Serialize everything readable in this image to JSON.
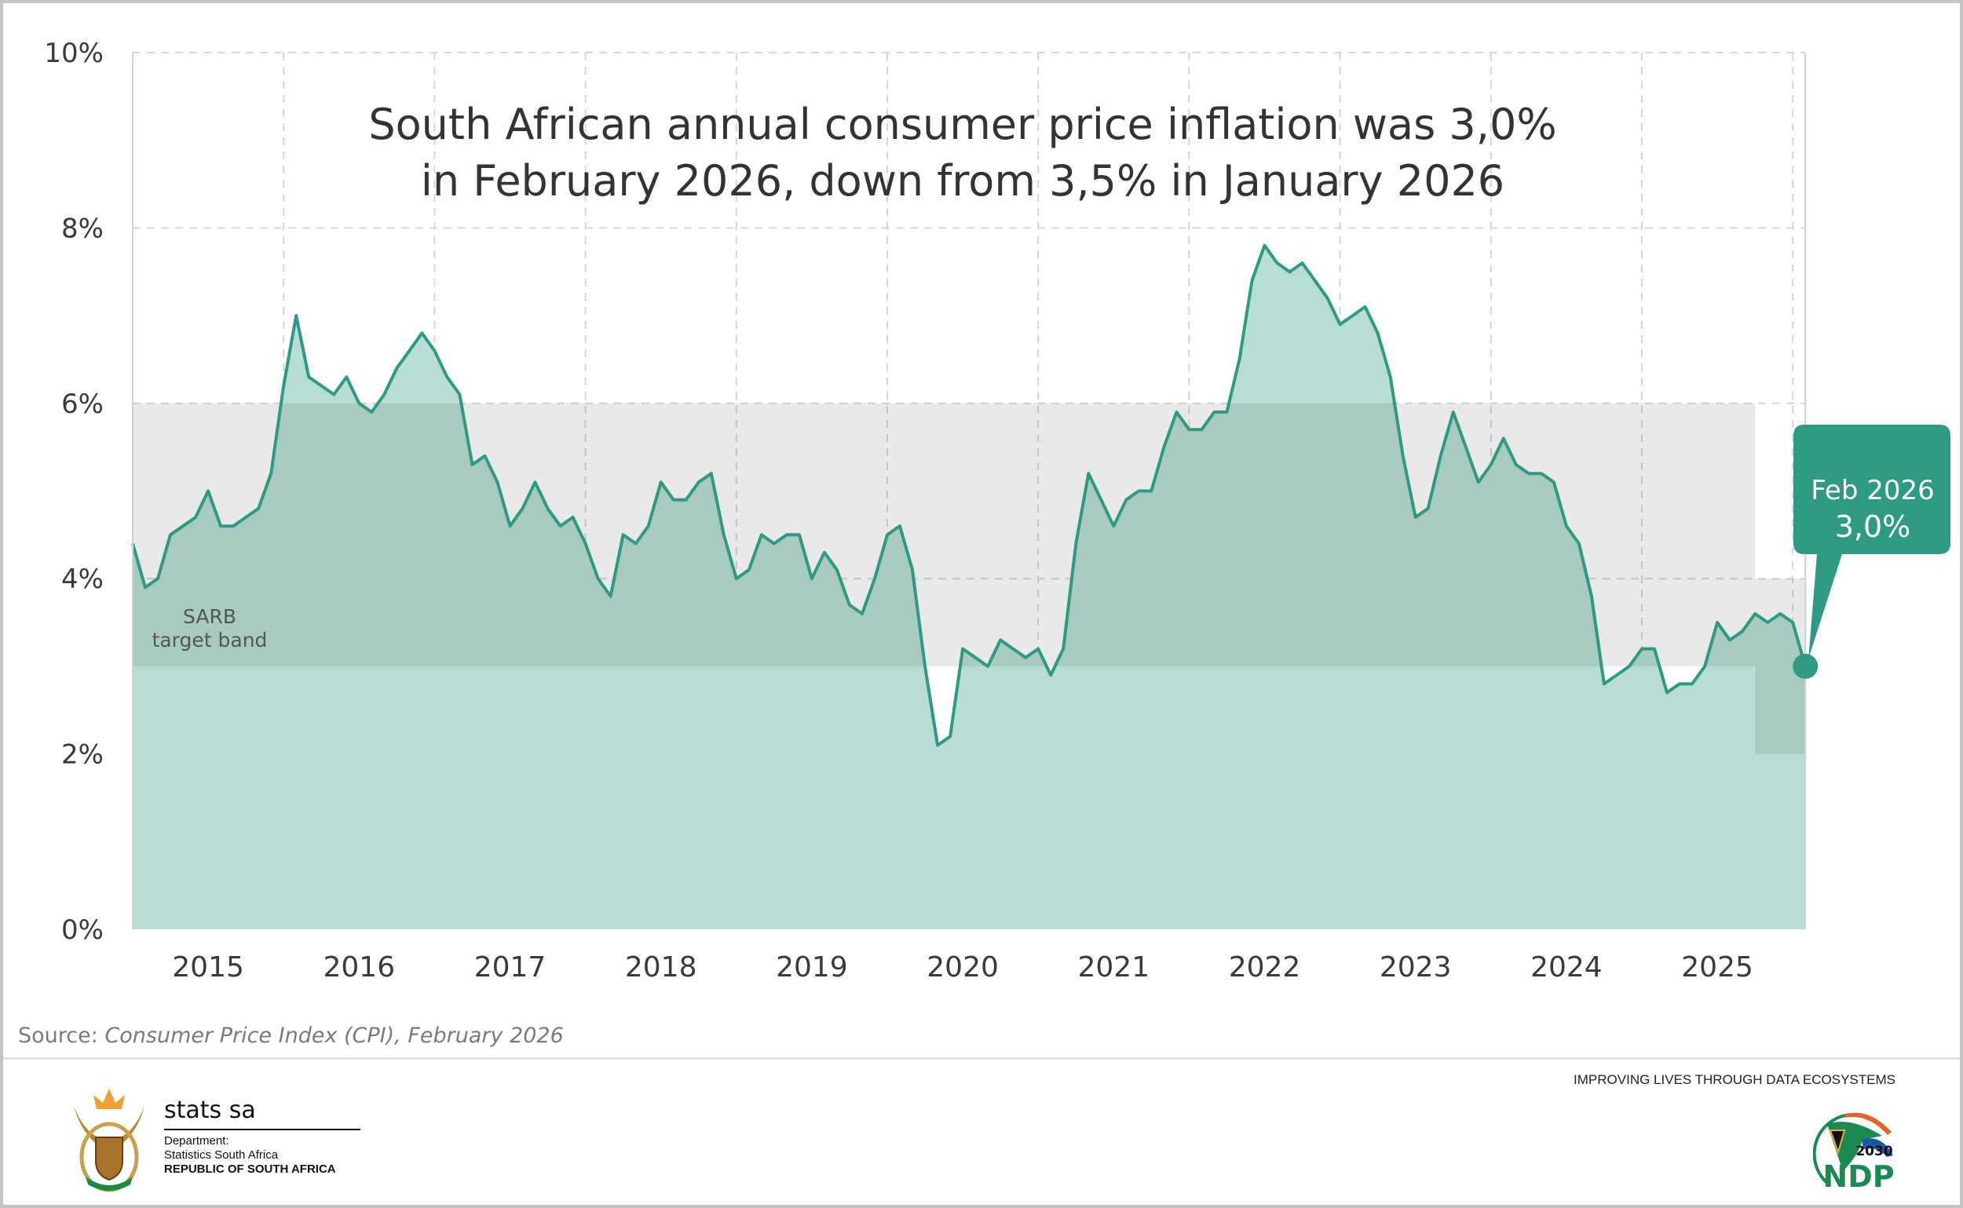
{
  "chart_data": {
    "type": "area",
    "title": "South African annual consumer price inflation was 3,0% in February 2026, down from 3,5% in January 2026",
    "title_lines": [
      "South African annual consumer price inflation was 3,0%",
      "in February 2026, down from 3,5% in January 2026"
    ],
    "xlabel": "",
    "ylabel": "",
    "ylim": [
      0,
      10
    ],
    "y_ticks": [
      "0%",
      "2%",
      "4%",
      "6%",
      "8%",
      "10%"
    ],
    "x_tick_labels": [
      "2015",
      "2016",
      "2017",
      "2018",
      "2019",
      "2020",
      "2021",
      "2022",
      "2023",
      "2024",
      "2025"
    ],
    "x_start": "2015-01",
    "x_end": "2026-02",
    "grid": true,
    "series": [
      {
        "frequency": "monthly",
        "values": [
          4.4,
          3.9,
          4.0,
          4.5,
          4.6,
          4.7,
          5.0,
          4.6,
          4.6,
          4.7,
          4.8,
          5.2,
          6.2,
          7.0,
          6.3,
          6.2,
          6.1,
          6.3,
          6.0,
          5.9,
          6.1,
          6.4,
          6.6,
          6.8,
          6.6,
          6.3,
          6.1,
          5.3,
          5.4,
          5.1,
          4.6,
          4.8,
          5.1,
          4.8,
          4.6,
          4.7,
          4.4,
          4.0,
          3.8,
          4.5,
          4.4,
          4.6,
          5.1,
          4.9,
          4.9,
          5.1,
          5.2,
          4.5,
          4.0,
          4.1,
          4.5,
          4.4,
          4.5,
          4.5,
          4.0,
          4.3,
          4.1,
          3.7,
          3.6,
          4.0,
          4.5,
          4.6,
          4.1,
          3.0,
          2.1,
          2.2,
          3.2,
          3.1,
          3.0,
          3.3,
          3.2,
          3.1,
          3.2,
          2.9,
          3.2,
          4.4,
          5.2,
          4.9,
          4.6,
          4.9,
          5.0,
          5.0,
          5.5,
          5.9,
          5.7,
          5.7,
          5.9,
          5.9,
          6.5,
          7.4,
          7.8,
          7.6,
          7.5,
          7.6,
          7.4,
          7.2,
          6.9,
          7.0,
          7.1,
          6.8,
          6.3,
          5.4,
          4.7,
          4.8,
          5.4,
          5.9,
          5.5,
          5.1,
          5.3,
          5.6,
          5.3,
          5.2,
          5.2,
          5.1,
          4.6,
          4.4,
          3.8,
          2.8,
          2.9,
          3.0,
          3.2,
          3.2,
          2.7,
          2.8,
          2.8,
          3.0,
          3.5,
          3.3,
          3.4,
          3.6,
          3.5,
          3.6,
          3.5,
          3.0
        ]
      }
    ],
    "target_band": {
      "label_lines": [
        "SARB",
        "target band"
      ],
      "segments": [
        {
          "from": "2015-01",
          "to": "2025-10",
          "low": 3,
          "high": 6
        },
        {
          "from": "2025-10",
          "to": "2026-02",
          "low": 2,
          "high": 4
        }
      ]
    },
    "callout": {
      "line1": "Feb 2026",
      "line2": "3,0%"
    },
    "colors": {
      "line": "#2e9a84",
      "fill": "#b8ddd4",
      "band": "#000000",
      "callout": "#2e9a84",
      "grid": "#d6d6d6",
      "text": "#3a3a3a"
    }
  },
  "source": {
    "prefix": "Source:",
    "text": "Consumer Price Index (CPI), February 2026"
  },
  "footer": {
    "brand": "stats sa",
    "dept_line1": "Department:",
    "dept_line2": "Statistics South Africa",
    "dept_line3": "REPUBLIC OF SOUTH AFRICA",
    "slogan": "IMPROVING LIVES THROUGH DATA ECOSYSTEMS",
    "ndp_logo": {
      "year": "2030",
      "text": "NDP"
    }
  }
}
